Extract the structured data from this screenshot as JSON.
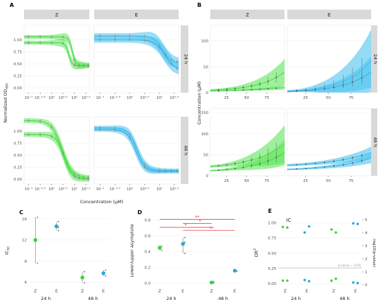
{
  "colors": {
    "green": "#39d43a",
    "blue": "#29a8dc",
    "green_band": "#5ee65a",
    "blue_band": "#4cc3ee",
    "strip": "#d9d9d9",
    "grey_pt": "#8c8c8c",
    "red": "#e8262b"
  },
  "chart_data": [
    {
      "id": "A",
      "panel_label": "A",
      "type": "line",
      "ylabel": "Normalized OD",
      "ylabel_sub": "490",
      "xlabel": "Concentration (µM)",
      "cols": [
        "Z",
        "E"
      ],
      "rows": [
        "24 h",
        "48 h"
      ],
      "xscale": "log10",
      "xlim_log": [
        -1.2,
        1.65
      ],
      "xtick_labels": [
        "10⁻¹",
        "10⁻⁰·⁵",
        "10⁰",
        "10⁰·⁵",
        "10¹",
        "10¹·⁵"
      ],
      "ylim": [
        -0.1,
        1.3
      ],
      "yticks": [
        0.0,
        0.25,
        0.5,
        0.75,
        1.0
      ],
      "ytick_labels": [
        "0.00",
        "0.25",
        "0.50",
        "0.75",
        "1.00"
      ],
      "series": [
        {
          "facet": [
            0,
            0
          ],
          "top": 1.06,
          "bottom": 0.47,
          "logec50": 0.9,
          "hill": 6,
          "band": 0.04
        },
        {
          "facet": [
            0,
            0
          ],
          "top": 0.94,
          "bottom": 0.46,
          "logec50": 0.75,
          "hill": 6,
          "band": 0.04
        },
        {
          "facet": [
            0,
            1
          ],
          "top": 1.08,
          "bottom": 0.52,
          "logec50": 1.1,
          "hill": 3,
          "band": 0.06
        },
        {
          "facet": [
            0,
            1
          ],
          "top": 1.0,
          "bottom": 0.35,
          "logec50": 1.2,
          "hill": 2.5,
          "band": 0.06
        },
        {
          "facet": [
            1,
            0
          ],
          "top": 1.22,
          "bottom": 0.03,
          "logec50": 0.45,
          "hill": 2,
          "band": 0.05
        },
        {
          "facet": [
            1,
            0
          ],
          "top": 0.93,
          "bottom": 0.0,
          "logec50": 0.55,
          "hill": 2.5,
          "band": 0.05
        },
        {
          "facet": [
            1,
            1
          ],
          "top": 1.07,
          "bottom": 0.18,
          "logec50": 0.25,
          "hill": 3,
          "band": 0.04
        },
        {
          "facet": [
            1,
            1
          ],
          "top": 1.03,
          "bottom": 0.16,
          "logec50": 0.2,
          "hill": 3,
          "band": 0.04
        }
      ]
    },
    {
      "id": "B",
      "panel_label": "B",
      "type": "area",
      "ylabel": "Concentration (µM)",
      "cols": [
        "Z",
        "E"
      ],
      "rows": [
        "24 h",
        "48 h"
      ],
      "xlim": [
        5,
        97
      ],
      "xticks": [
        25,
        50,
        75
      ],
      "rows_ylim": [
        [
          0,
          130
        ],
        [
          0,
          160
        ]
      ],
      "rows_yticks": [
        [
          0,
          50,
          100
        ],
        [
          0,
          50,
          100,
          150
        ]
      ],
      "series": [
        {
          "facet": [
            0,
            0
          ],
          "y0": 5,
          "y1": 40,
          "k": 3,
          "bw0": 2,
          "bw1": 25
        },
        {
          "facet": [
            0,
            0
          ],
          "y0": 3,
          "y1": 10,
          "k": 1.5,
          "bw0": 1,
          "bw1": 4
        },
        {
          "facet": [
            0,
            1
          ],
          "y0": 3,
          "y1": 62,
          "k": 3.2,
          "bw0": 2,
          "bw1": 60
        },
        {
          "facet": [
            0,
            1
          ],
          "y0": 2,
          "y1": 40,
          "k": 3,
          "bw0": 1,
          "bw1": 30
        },
        {
          "facet": [
            1,
            0
          ],
          "y0": 22,
          "y1": 75,
          "k": 2.3,
          "bw0": 3,
          "bw1": 45
        },
        {
          "facet": [
            1,
            0
          ],
          "y0": 12,
          "y1": 55,
          "k": 2.5,
          "bw0": 2,
          "bw1": 30
        },
        {
          "facet": [
            1,
            1
          ],
          "y0": 25,
          "y1": 55,
          "k": 2.0,
          "bw0": 3,
          "bw1": 14
        },
        {
          "facet": [
            1,
            1
          ],
          "y0": 15,
          "y1": 42,
          "k": 2.2,
          "bw0": 2,
          "bw1": 12
        }
      ]
    },
    {
      "id": "C",
      "panel_label": "C",
      "type": "scatter",
      "ylabel": "IC",
      "ylabel_sub": "50",
      "ylim": [
        3.5,
        16.5
      ],
      "yticks": [
        4,
        8,
        12,
        16
      ],
      "categories": [
        "Z",
        "E",
        "Z",
        "E"
      ],
      "groups": [
        "24 h",
        "48 h"
      ],
      "points": [
        {
          "cat": 0,
          "mean": 12.0,
          "lo": 7.6,
          "hi": 16.3,
          "color": "green",
          "reps": [
            7.6,
            16.3
          ]
        },
        {
          "cat": 1,
          "mean": 14.6,
          "lo": 13.8,
          "hi": 15.5,
          "color": "blue",
          "reps": [
            13.8,
            15.5,
            14.4
          ]
        },
        {
          "cat": 2,
          "mean": 4.9,
          "lo": 3.9,
          "hi": 6.0,
          "color": "green",
          "reps": [
            3.9,
            6.0
          ]
        },
        {
          "cat": 3,
          "mean": 5.7,
          "lo": 5.2,
          "hi": 6.3,
          "color": "blue",
          "reps": [
            5.2,
            6.3
          ]
        }
      ]
    },
    {
      "id": "D",
      "panel_label": "D",
      "type": "scatter",
      "ylabel": "Lower/upper asymptote",
      "ylim": [
        -0.02,
        0.85
      ],
      "yticks": [
        0.0,
        0.2,
        0.4,
        0.6,
        0.8
      ],
      "ytick_labels": [
        "0.0",
        "0.2",
        "0.4",
        "0.6",
        "0.8"
      ],
      "categories": [
        "Z",
        "E",
        "Z",
        "E"
      ],
      "groups": [
        "24 h",
        "48 h"
      ],
      "points": [
        {
          "cat": 0,
          "mean": 0.45,
          "lo": 0.42,
          "hi": 0.48,
          "color": "green",
          "reps": [
            0.42,
            0.47
          ]
        },
        {
          "cat": 1,
          "mean": 0.5,
          "lo": 0.38,
          "hi": 0.58,
          "color": "blue",
          "reps": [
            0.38,
            0.58,
            0.52
          ]
        },
        {
          "cat": 2,
          "mean": 0.01,
          "lo": 0.0,
          "hi": 0.02,
          "color": "green",
          "reps": [
            0.005,
            0.02
          ]
        },
        {
          "cat": 3,
          "mean": 0.16,
          "lo": 0.15,
          "hi": 0.17,
          "color": "blue",
          "reps": [
            0.155
          ]
        }
      ],
      "brackets": [
        {
          "from": 0,
          "to": 3,
          "y": 0.81,
          "label": "**"
        },
        {
          "from": 1,
          "to": 2,
          "y": 0.76,
          "label": "*"
        },
        {
          "from": 0,
          "to": 2,
          "y": 0.71,
          "label": "*"
        },
        {
          "from": 1,
          "to": 3,
          "y": 0.67,
          "label": "**"
        }
      ]
    },
    {
      "id": "E",
      "panel_label": "E",
      "title": "IC",
      "type": "scatter",
      "ylabel": "DR",
      "ylabel_sup": "2",
      "ylabel_right": "-log10(p-value)",
      "ylim": [
        -0.02,
        1.05
      ],
      "yticks": [
        0.0,
        0.25,
        0.5,
        0.75,
        1.0
      ],
      "ytick_labels": [
        "0.00",
        "0.25",
        "0.50",
        "0.75",
        "1.00"
      ],
      "yright_ticks": [
        0,
        1,
        2,
        3,
        4,
        5
      ],
      "categories": [
        "Z",
        "E",
        "Z",
        "E"
      ],
      "groups": [
        "24 h",
        "48 h"
      ],
      "threshold": {
        "y": 0.26,
        "label": "p-value = 0.05"
      },
      "points": [
        {
          "cat": 0,
          "dx": -0.08,
          "y": 0.93,
          "color": "green"
        },
        {
          "cat": 0,
          "dx": 0.08,
          "y": 0.92,
          "color": "green"
        },
        {
          "cat": 1,
          "dx": -0.08,
          "y": 0.84,
          "color": "blue"
        },
        {
          "cat": 1,
          "dx": 0.08,
          "y": 0.94,
          "color": "blue"
        },
        {
          "cat": 2,
          "dx": -0.08,
          "y": 0.89,
          "color": "green"
        },
        {
          "cat": 2,
          "dx": 0.08,
          "y": 0.84,
          "color": "green"
        },
        {
          "cat": 3,
          "dx": -0.08,
          "y": 0.99,
          "color": "blue"
        },
        {
          "cat": 3,
          "dx": 0.08,
          "y": 0.98,
          "color": "blue"
        },
        {
          "cat": 0,
          "dx": -0.08,
          "y": 0.05,
          "color": "green"
        },
        {
          "cat": 0,
          "dx": 0.08,
          "y": 0.05,
          "color": "green"
        },
        {
          "cat": 1,
          "dx": -0.08,
          "y": 0.06,
          "color": "blue"
        },
        {
          "cat": 1,
          "dx": 0.08,
          "y": 0.04,
          "color": "blue"
        },
        {
          "cat": 2,
          "dx": -0.08,
          "y": 0.05,
          "color": "green"
        },
        {
          "cat": 2,
          "dx": 0.08,
          "y": 0.08,
          "color": "green"
        },
        {
          "cat": 3,
          "dx": -0.08,
          "y": 0.02,
          "color": "blue"
        },
        {
          "cat": 3,
          "dx": 0.08,
          "y": 0.01,
          "color": "blue"
        }
      ]
    }
  ]
}
